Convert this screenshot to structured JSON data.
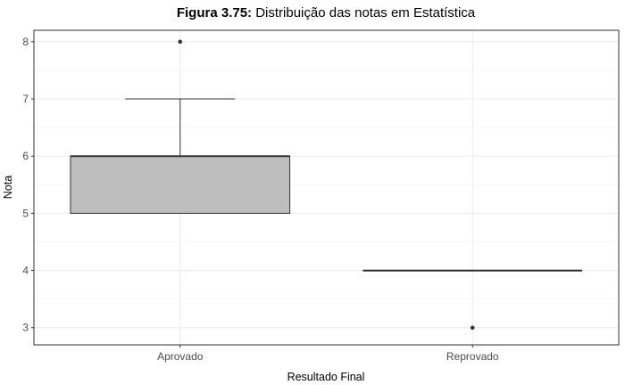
{
  "chart_data": {
    "type": "boxplot",
    "title_bold": "Figura 3.75:",
    "title_rest": " Distribuição das notas em Estatística",
    "xlabel": "Resultado Final",
    "ylabel": "Nota",
    "ylim": [
      2.7,
      8.2
    ],
    "y_ticks": [
      "3",
      "4",
      "5",
      "6",
      "7",
      "8"
    ],
    "categories": [
      "Aprovado",
      "Reprovado"
    ],
    "boxes": [
      {
        "category": "Aprovado",
        "whisker_low": 5,
        "q1": 5,
        "median": 6,
        "q3": 6,
        "whisker_high": 7,
        "outliers": [
          8
        ]
      },
      {
        "category": "Reprovado",
        "whisker_low": 4,
        "q1": 4,
        "median": 4,
        "q3": 4,
        "whisker_high": 4,
        "outliers": [
          3
        ]
      }
    ],
    "grid": true,
    "box_fill": "#bebebe",
    "panel_border": "#333333"
  }
}
